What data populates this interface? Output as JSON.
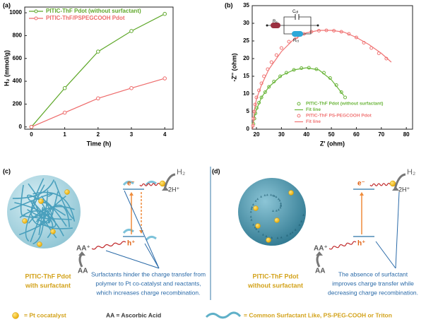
{
  "chart_data": [
    {
      "type": "line",
      "panel_label": "(a)",
      "x_label": "Time (h)",
      "y_label": "H₂ (mmol/g)",
      "x": [
        0,
        1,
        2,
        3,
        4
      ],
      "xlim": [
        -0.2,
        4.25
      ],
      "xticks": [
        0,
        1,
        2,
        3,
        4
      ],
      "ylim": [
        -20,
        1050
      ],
      "yticks": [
        0,
        200,
        400,
        600,
        800,
        1000
      ],
      "markers": true,
      "legend": "upper left",
      "series": [
        {
          "name": "PITIC-ThF Pdot (without surfactant)",
          "color": "#5fa82a",
          "values": [
            0,
            340,
            660,
            840,
            990
          ]
        },
        {
          "name": "PITIC-ThF/PSPEGCOOH Pdot",
          "color": "#ee6b6b",
          "values": [
            0,
            125,
            250,
            340,
            425
          ]
        }
      ]
    },
    {
      "type": "scatter",
      "panel_label": "(b)",
      "x_label": "Z' (ohm)",
      "y_label": "-Z'' (ohm)",
      "xlim": [
        18.3,
        82.5
      ],
      "xticks": [
        20,
        30,
        40,
        50,
        60,
        70,
        80
      ],
      "ylim": [
        0,
        35
      ],
      "yticks": [
        0,
        5,
        10,
        15,
        20,
        25,
        30,
        35
      ],
      "legend": "lower right",
      "inset": {
        "rs": {
          "main": "R",
          "sub": "s"
        },
        "cdl": {
          "main": "C",
          "sub": "dl"
        },
        "rct": {
          "main": "R",
          "sub": "ct"
        }
      },
      "series": [
        {
          "name": "PITIC-ThF Pdot (without surfactant)",
          "type": "scatter",
          "color": "#6ab53a",
          "x": [
            18.8,
            19.2,
            19.6,
            20.1,
            21,
            22,
            23.5,
            25,
            27,
            29.5,
            32,
            35,
            38,
            41,
            44,
            47,
            49.5,
            52,
            54,
            55.5
          ],
          "values": [
            1.5,
            3,
            4.5,
            6,
            7.5,
            9,
            10.5,
            12,
            13.5,
            15,
            16,
            16.8,
            17.3,
            17.4,
            17,
            16,
            14.5,
            12.5,
            10.5,
            9
          ]
        },
        {
          "name": "Fit line",
          "type": "line",
          "color": "#6ab53a",
          "x": [
            18.5,
            19,
            20,
            22,
            25,
            30,
            35,
            40,
            45,
            50,
            55
          ],
          "values": [
            0.5,
            3,
            5.5,
            9,
            12,
            15.2,
            16.8,
            17.4,
            16.8,
            14,
            9.5
          ]
        },
        {
          "name": "PITIC-ThF PS-PEGCOOH Pdot",
          "type": "scatter",
          "color": "#f07575",
          "x": [
            18.6,
            18.8,
            19.1,
            19.5,
            20,
            21,
            22,
            23,
            24.5,
            26,
            28,
            30,
            33,
            36,
            39,
            42,
            45,
            48,
            51,
            54,
            57,
            60,
            63,
            66,
            69,
            72
          ],
          "values": [
            1,
            3,
            5,
            7,
            9,
            11,
            13,
            15,
            17,
            19,
            21,
            23,
            24.8,
            26,
            27,
            27.6,
            27.9,
            28,
            27.9,
            27.6,
            27,
            26,
            24.5,
            23,
            21.5,
            20
          ]
        },
        {
          "name": "Fit line",
          "type": "line",
          "color": "#f07575",
          "x": [
            18.5,
            18.7,
            19.2,
            20,
            22,
            25,
            30,
            35,
            40,
            45,
            50,
            55,
            60,
            65,
            70,
            74
          ],
          "values": [
            0,
            2,
            5.5,
            8.5,
            12.5,
            17,
            22,
            25.5,
            27.3,
            28,
            28,
            27.5,
            26,
            24,
            21.5,
            19
          ]
        }
      ]
    }
  ],
  "panel_c": {
    "label": "(c)",
    "h2": "H₂",
    "protons": "2H⁺",
    "electron": "e⁻",
    "hole": "h⁺",
    "aa_plus": "AA⁺",
    "aa": "AA",
    "name": [
      "PITIC-ThF Pdot",
      "with surfactant"
    ],
    "caption": [
      "Surfactants hinder the charge transfer from",
      "polymer to Pt co-catalyst and reactants,",
      "which increases charge recombination."
    ]
  },
  "panel_d": {
    "label": "(d)",
    "h2": "H₂",
    "protons": "2H⁺",
    "electron": "e⁻",
    "hole": "h⁺",
    "aa_plus": "AA⁺",
    "aa": "AA",
    "name": [
      "PITIC-ThF Pdot",
      "without surfactant"
    ],
    "caption": [
      "The absence of surfactant",
      "improves charge transfer while",
      "decreasing charge recombination."
    ]
  },
  "legend": {
    "pt": "= Pt cocatalyst",
    "aa": "AA = Ascorbic Acid",
    "surfactant": "= Common Surfactant  Like, PS-PEG-COOH or Triton"
  }
}
